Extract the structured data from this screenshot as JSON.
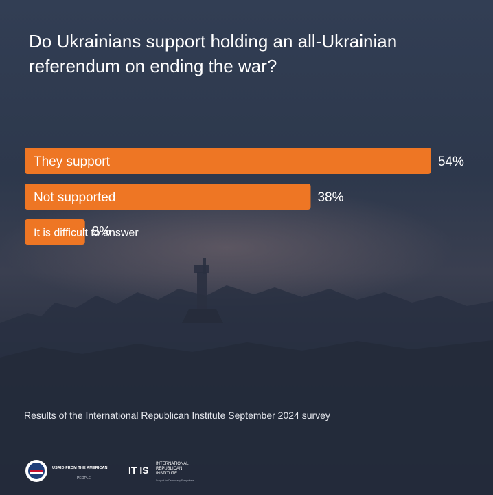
{
  "title_lines": [
    "Do Ukrainians support holding an all-Ukrainian",
    "referendum on ending the war?"
  ],
  "chart_data": {
    "type": "bar",
    "orientation": "horizontal",
    "categories": [
      "They support",
      "Not supported",
      "It is difficult to answer"
    ],
    "values": [
      54,
      38,
      8
    ],
    "value_labels": [
      "54%",
      "38%",
      "8%"
    ],
    "unit": "%",
    "bar_color": "#ee7624",
    "grid": false
  },
  "footnote": "Results of the International Republican Institute September 2024 survey",
  "logos": {
    "usaid_text": "USAID FROM THE AMERICAN",
    "usaid_sub": "PEOPLE",
    "iri_mark": "IT IS",
    "iri_name_lines": [
      "INTERNATIONAL",
      "REPUBLICAN",
      "INSTITUTE"
    ],
    "iri_tag": "Support for Democracy Everywhere"
  },
  "colors": {
    "bar": "#ee7624",
    "text": "#ffffff"
  }
}
